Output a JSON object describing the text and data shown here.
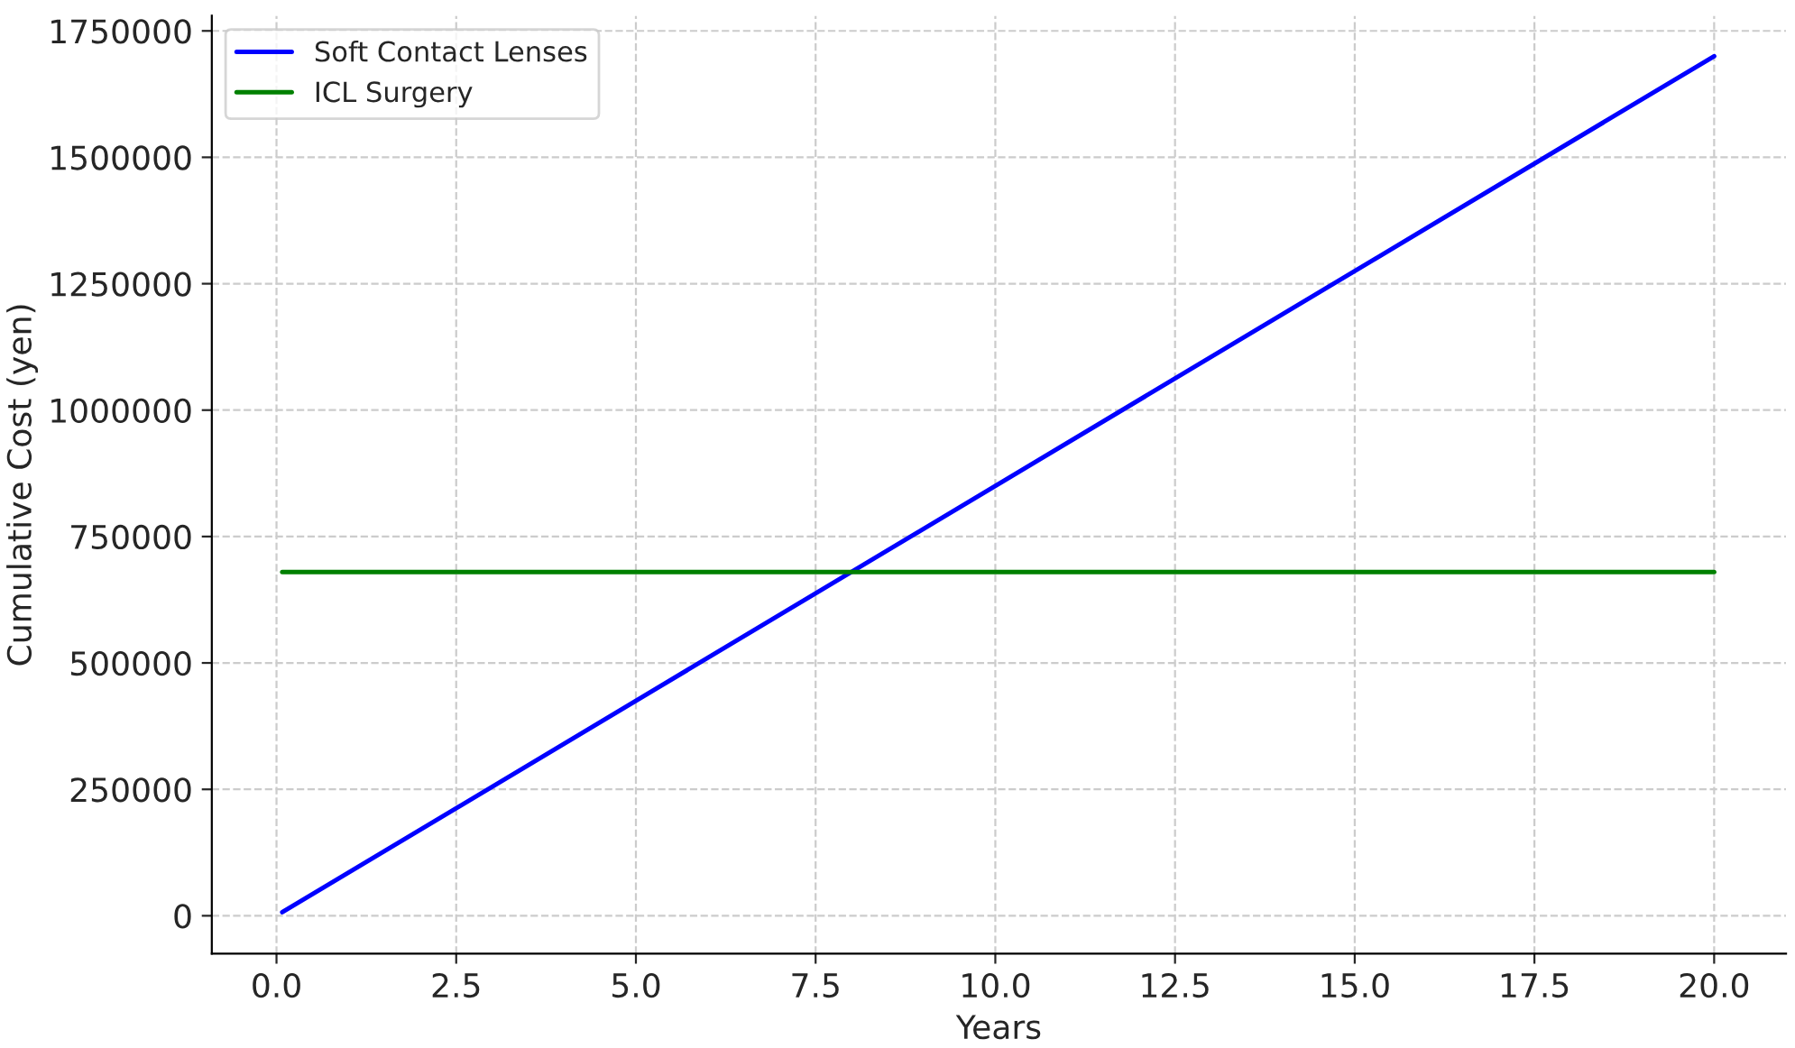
{
  "chart_data": {
    "type": "line",
    "xlabel": "Years",
    "ylabel": "Cumulative Cost (yen)",
    "x": [
      0.08,
      20
    ],
    "series": [
      {
        "name": "Soft Contact Lenses",
        "color": "#0000ff",
        "values": [
          7000,
          1700000
        ]
      },
      {
        "name": "ICL Surgery",
        "color": "#008000",
        "values": [
          680000,
          680000
        ]
      }
    ],
    "xlim": [
      -0.9,
      21.0
    ],
    "ylim": [
      -75000,
      1780000
    ],
    "xticks": [
      {
        "value": 0,
        "label": "0.0"
      },
      {
        "value": 2.5,
        "label": "2.5"
      },
      {
        "value": 5,
        "label": "5.0"
      },
      {
        "value": 7.5,
        "label": "7.5"
      },
      {
        "value": 10,
        "label": "10.0"
      },
      {
        "value": 12.5,
        "label": "12.5"
      },
      {
        "value": 15,
        "label": "15.0"
      },
      {
        "value": 17.5,
        "label": "17.5"
      },
      {
        "value": 20,
        "label": "20.0"
      }
    ],
    "yticks": [
      0,
      250000,
      500000,
      750000,
      1000000,
      1250000,
      1500000,
      1750000
    ],
    "grid": true,
    "legend": "top left",
    "marker": "none",
    "line_style": "solid"
  }
}
